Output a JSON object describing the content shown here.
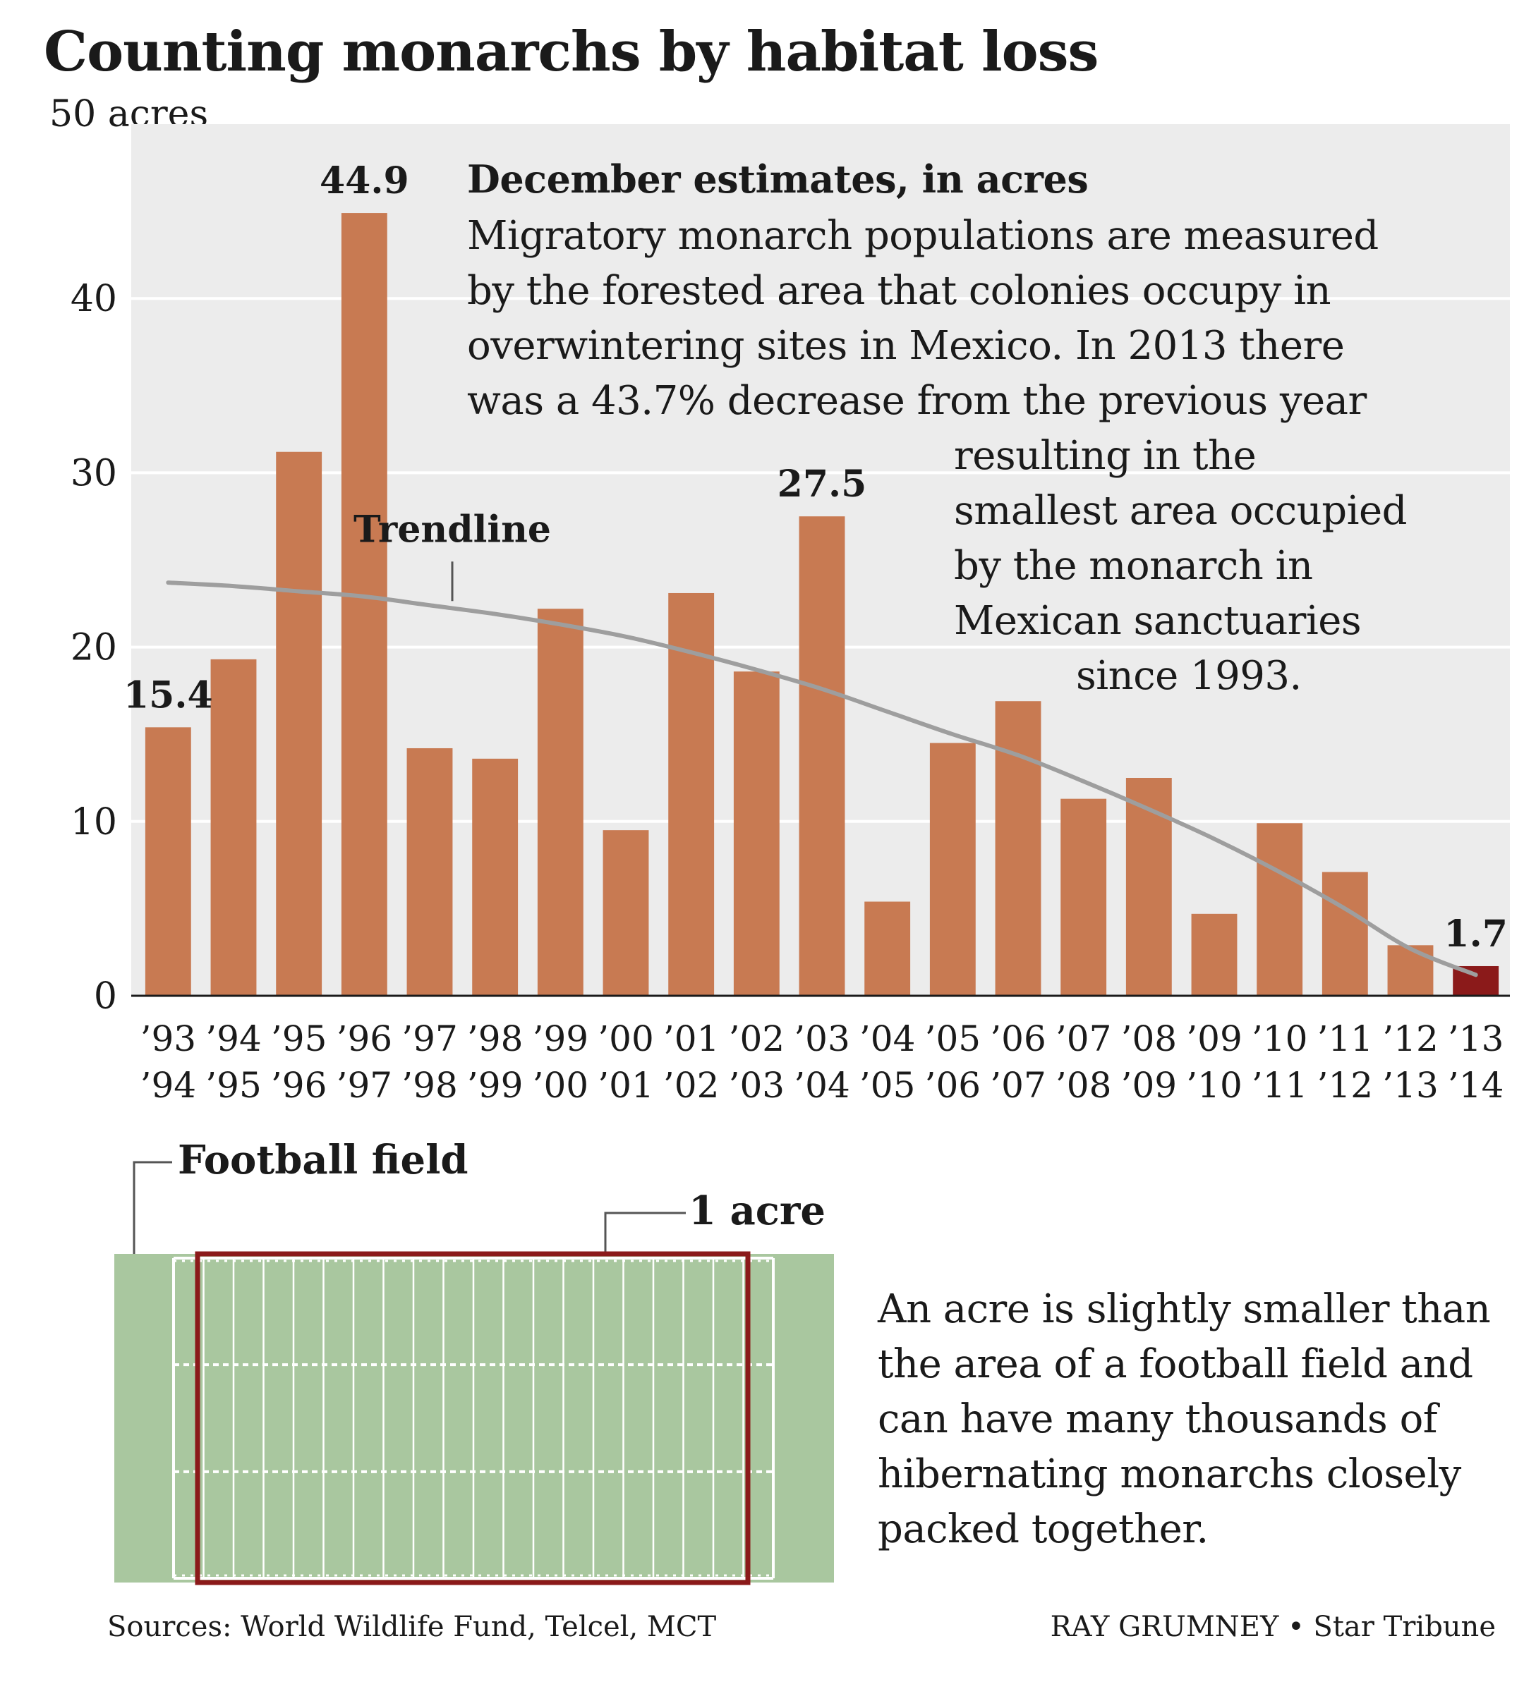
{
  "chart_data": {
    "type": "bar",
    "title": "Counting monarchs by habitat loss",
    "unit_label": "50 acres",
    "ylim": [
      0,
      50
    ],
    "yticks": [
      "0",
      "10",
      "20",
      "30",
      "40"
    ],
    "categories": [
      [
        "’93",
        "’94"
      ],
      [
        "’94",
        "’95"
      ],
      [
        "’95",
        "’96"
      ],
      [
        "’96",
        "’97"
      ],
      [
        "’97",
        "’98"
      ],
      [
        "’98",
        "’99"
      ],
      [
        "’99",
        "’00"
      ],
      [
        "’00",
        "’01"
      ],
      [
        "’01",
        "’02"
      ],
      [
        "’02",
        "’03"
      ],
      [
        "’03",
        "’04"
      ],
      [
        "’04",
        "’05"
      ],
      [
        "’05",
        "’06"
      ],
      [
        "’06",
        "’07"
      ],
      [
        "’07",
        "’08"
      ],
      [
        "’08",
        "’09"
      ],
      [
        "’09",
        "’10"
      ],
      [
        "’10",
        "’11"
      ],
      [
        "’11",
        "’12"
      ],
      [
        "’12",
        "’13"
      ],
      [
        "’13",
        "’14"
      ]
    ],
    "values": [
      15.4,
      19.3,
      31.2,
      44.9,
      14.2,
      13.6,
      22.2,
      9.5,
      23.1,
      18.6,
      27.5,
      5.4,
      14.5,
      16.9,
      11.3,
      12.5,
      4.7,
      9.9,
      7.1,
      2.9,
      1.7
    ],
    "data_labels": [
      {
        "index": 0,
        "text": "15.4"
      },
      {
        "index": 3,
        "text": "44.9"
      },
      {
        "index": 10,
        "text": "27.5"
      },
      {
        "index": 20,
        "text": "1.7"
      }
    ],
    "trendline": {
      "label": "Trendline",
      "values": [
        23.7,
        23.5,
        23.2,
        22.9,
        22.4,
        21.9,
        21.3,
        20.6,
        19.7,
        18.7,
        17.6,
        16.3,
        15.0,
        13.8,
        12.3,
        10.7,
        9.0,
        7.1,
        5.0,
        2.7,
        1.2
      ]
    },
    "highlight_index": 20,
    "colors": {
      "bar": "#c87a52",
      "highlight": "#8b1a1a",
      "trend": "#9e9e9e",
      "panel": "#ececec",
      "grid": "#ffffff"
    },
    "grid": true
  },
  "note": {
    "title": "December estimates, in acres",
    "text_a": "Migratory monarch populations are measured\nby the forested area that colonies occupy in\noverwintering sites in Mexico. In 2013 there\nwas a 43.7% decrease from the previous year",
    "text_b": "resulting in the\nsmallest area occupied\nby the monarch in\nMexican sanctuaries\n          since 1993."
  },
  "field": {
    "football_label": "Football field",
    "acre_label": "1 acre",
    "description": "An acre is slightly smaller than\nthe area of a football field and\ncan have many thousands of\nhibernating monarchs closely\npacked together.",
    "colors": {
      "turf": "#a9c79f",
      "line": "#ffffff",
      "acre": "#8b1a1a"
    }
  },
  "footer": {
    "sources": "Sources: World Wildlife Fund, Telcel, MCT",
    "credit": "RAY GRUMNEY • Star Tribune"
  }
}
